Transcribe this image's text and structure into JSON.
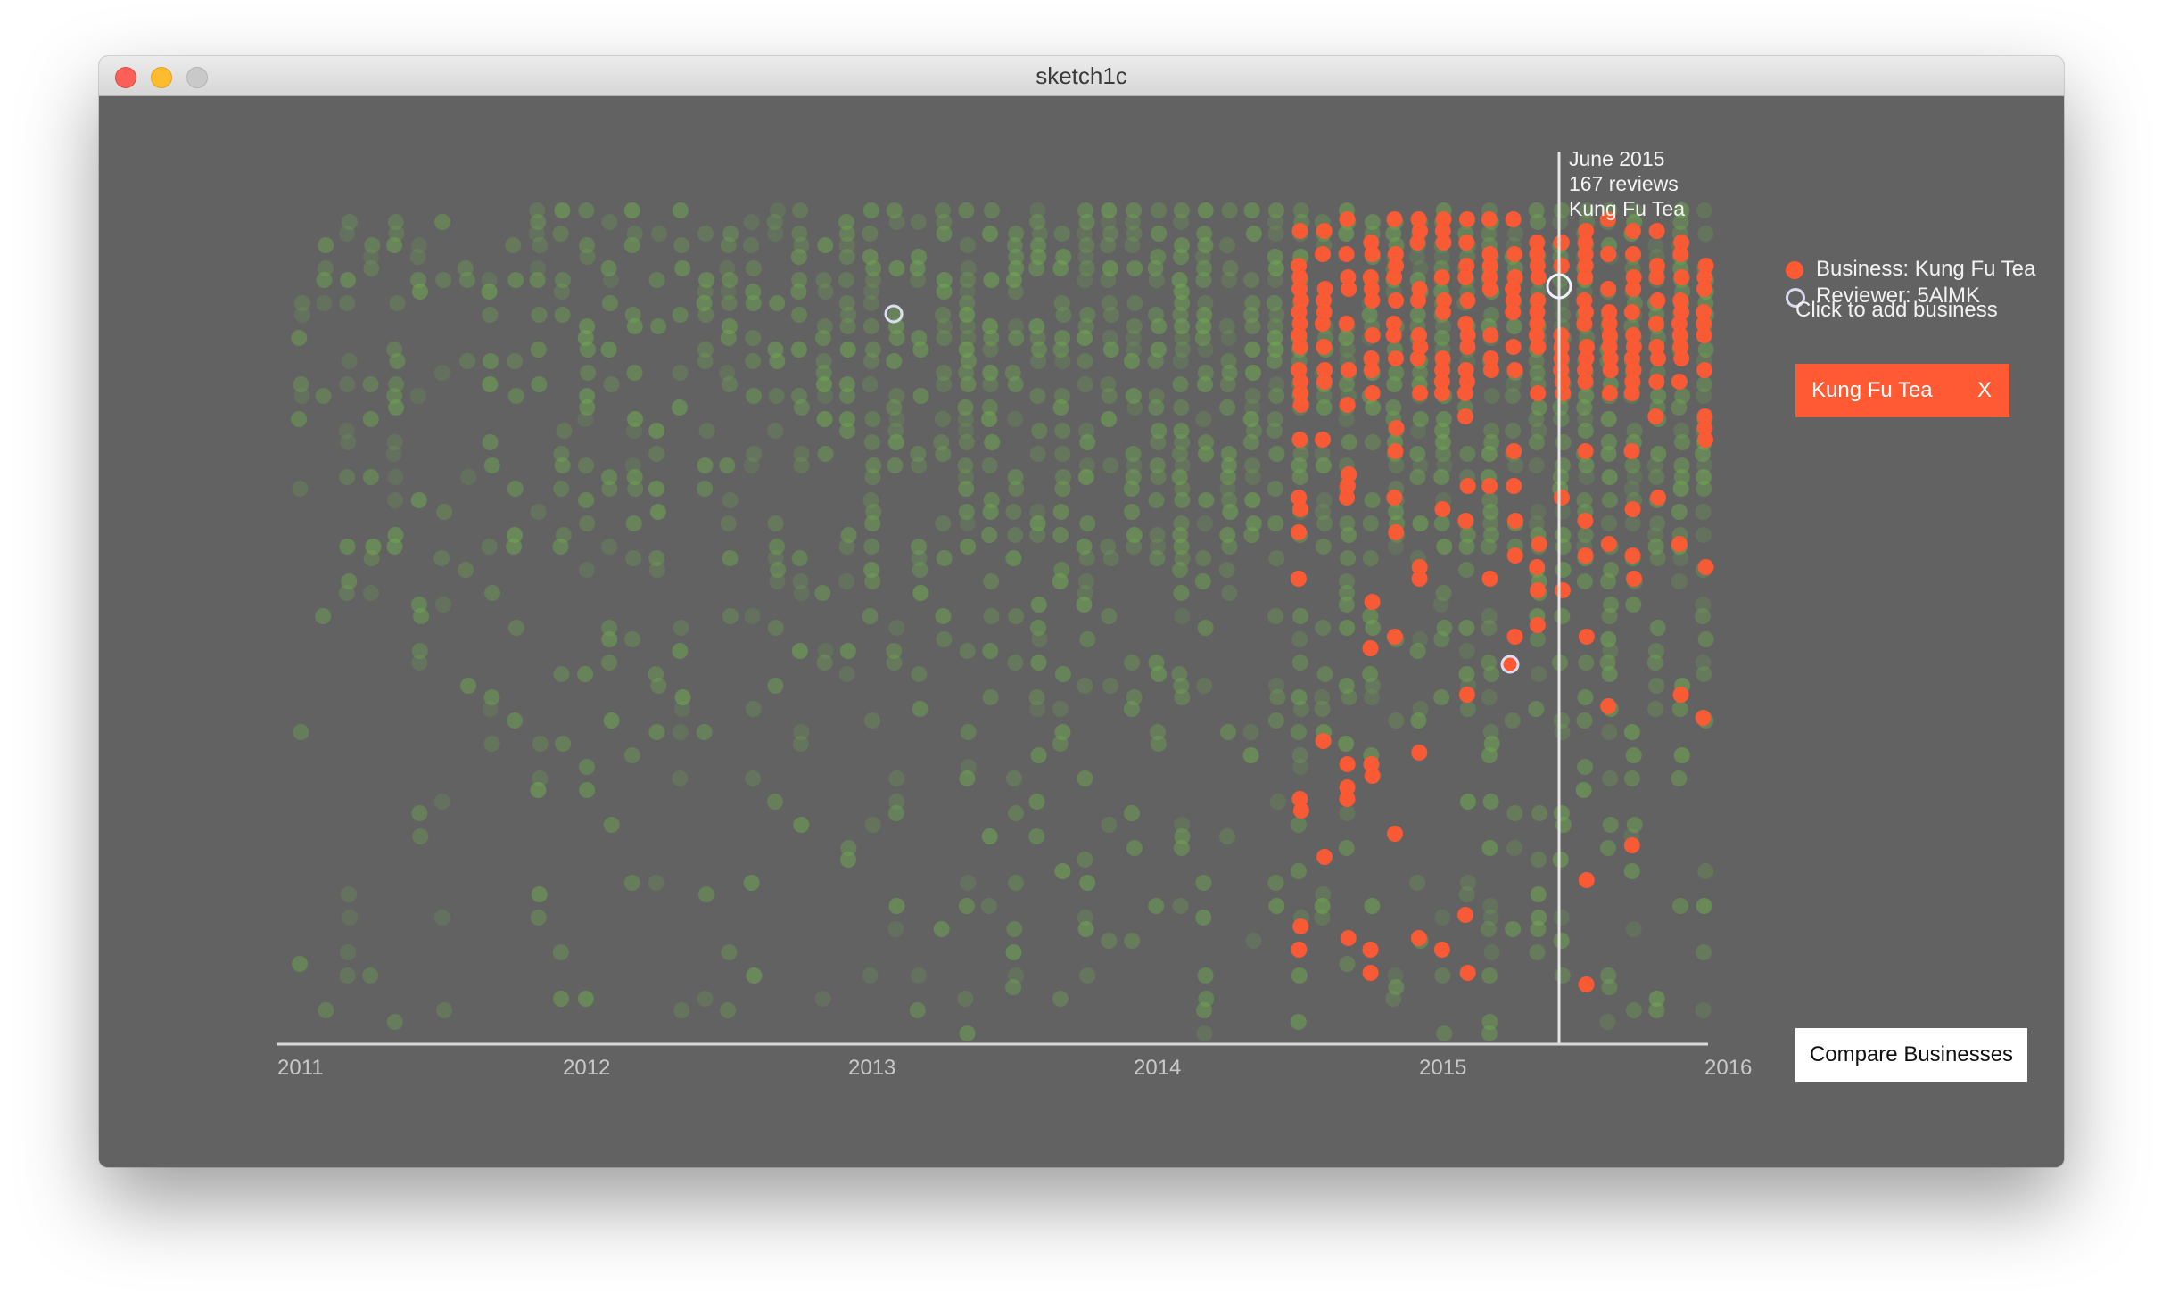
{
  "window": {
    "title": "sketch1c"
  },
  "hover": {
    "month": "June 2015",
    "reviews": "167 reviews",
    "business": "Kung Fu Tea"
  },
  "legend": {
    "business": "Business: Kung Fu Tea",
    "reviewer": "Reviewer: 5AlMK",
    "business_color": "#ff5a33",
    "reviewer_color": "#d8d8f0"
  },
  "hint": "Click to add business",
  "selected_business": {
    "label": "Kung Fu Tea",
    "remove": "X"
  },
  "compare_button": "Compare Businesses",
  "colors": {
    "background": "#626262",
    "other_reviews": "#6fae4f",
    "business_reviews": "#ff5a33",
    "axis": "#d9d9d9",
    "tick_labels": "#c8c8c8"
  },
  "chart_data": {
    "type": "scatter",
    "x_ticks": [
      "2011",
      "2012",
      "2013",
      "2014",
      "2015",
      "2016"
    ],
    "xlim": [
      "2011-01",
      "2016-01"
    ],
    "highlight_month": "2015-06",
    "highlight_count": 167,
    "series": [
      {
        "name": "Business: Kung Fu Tea",
        "color": "#ff5a33"
      },
      {
        "name": "Reviewer: 5AlMK",
        "color": "#d8d8f0"
      }
    ]
  }
}
